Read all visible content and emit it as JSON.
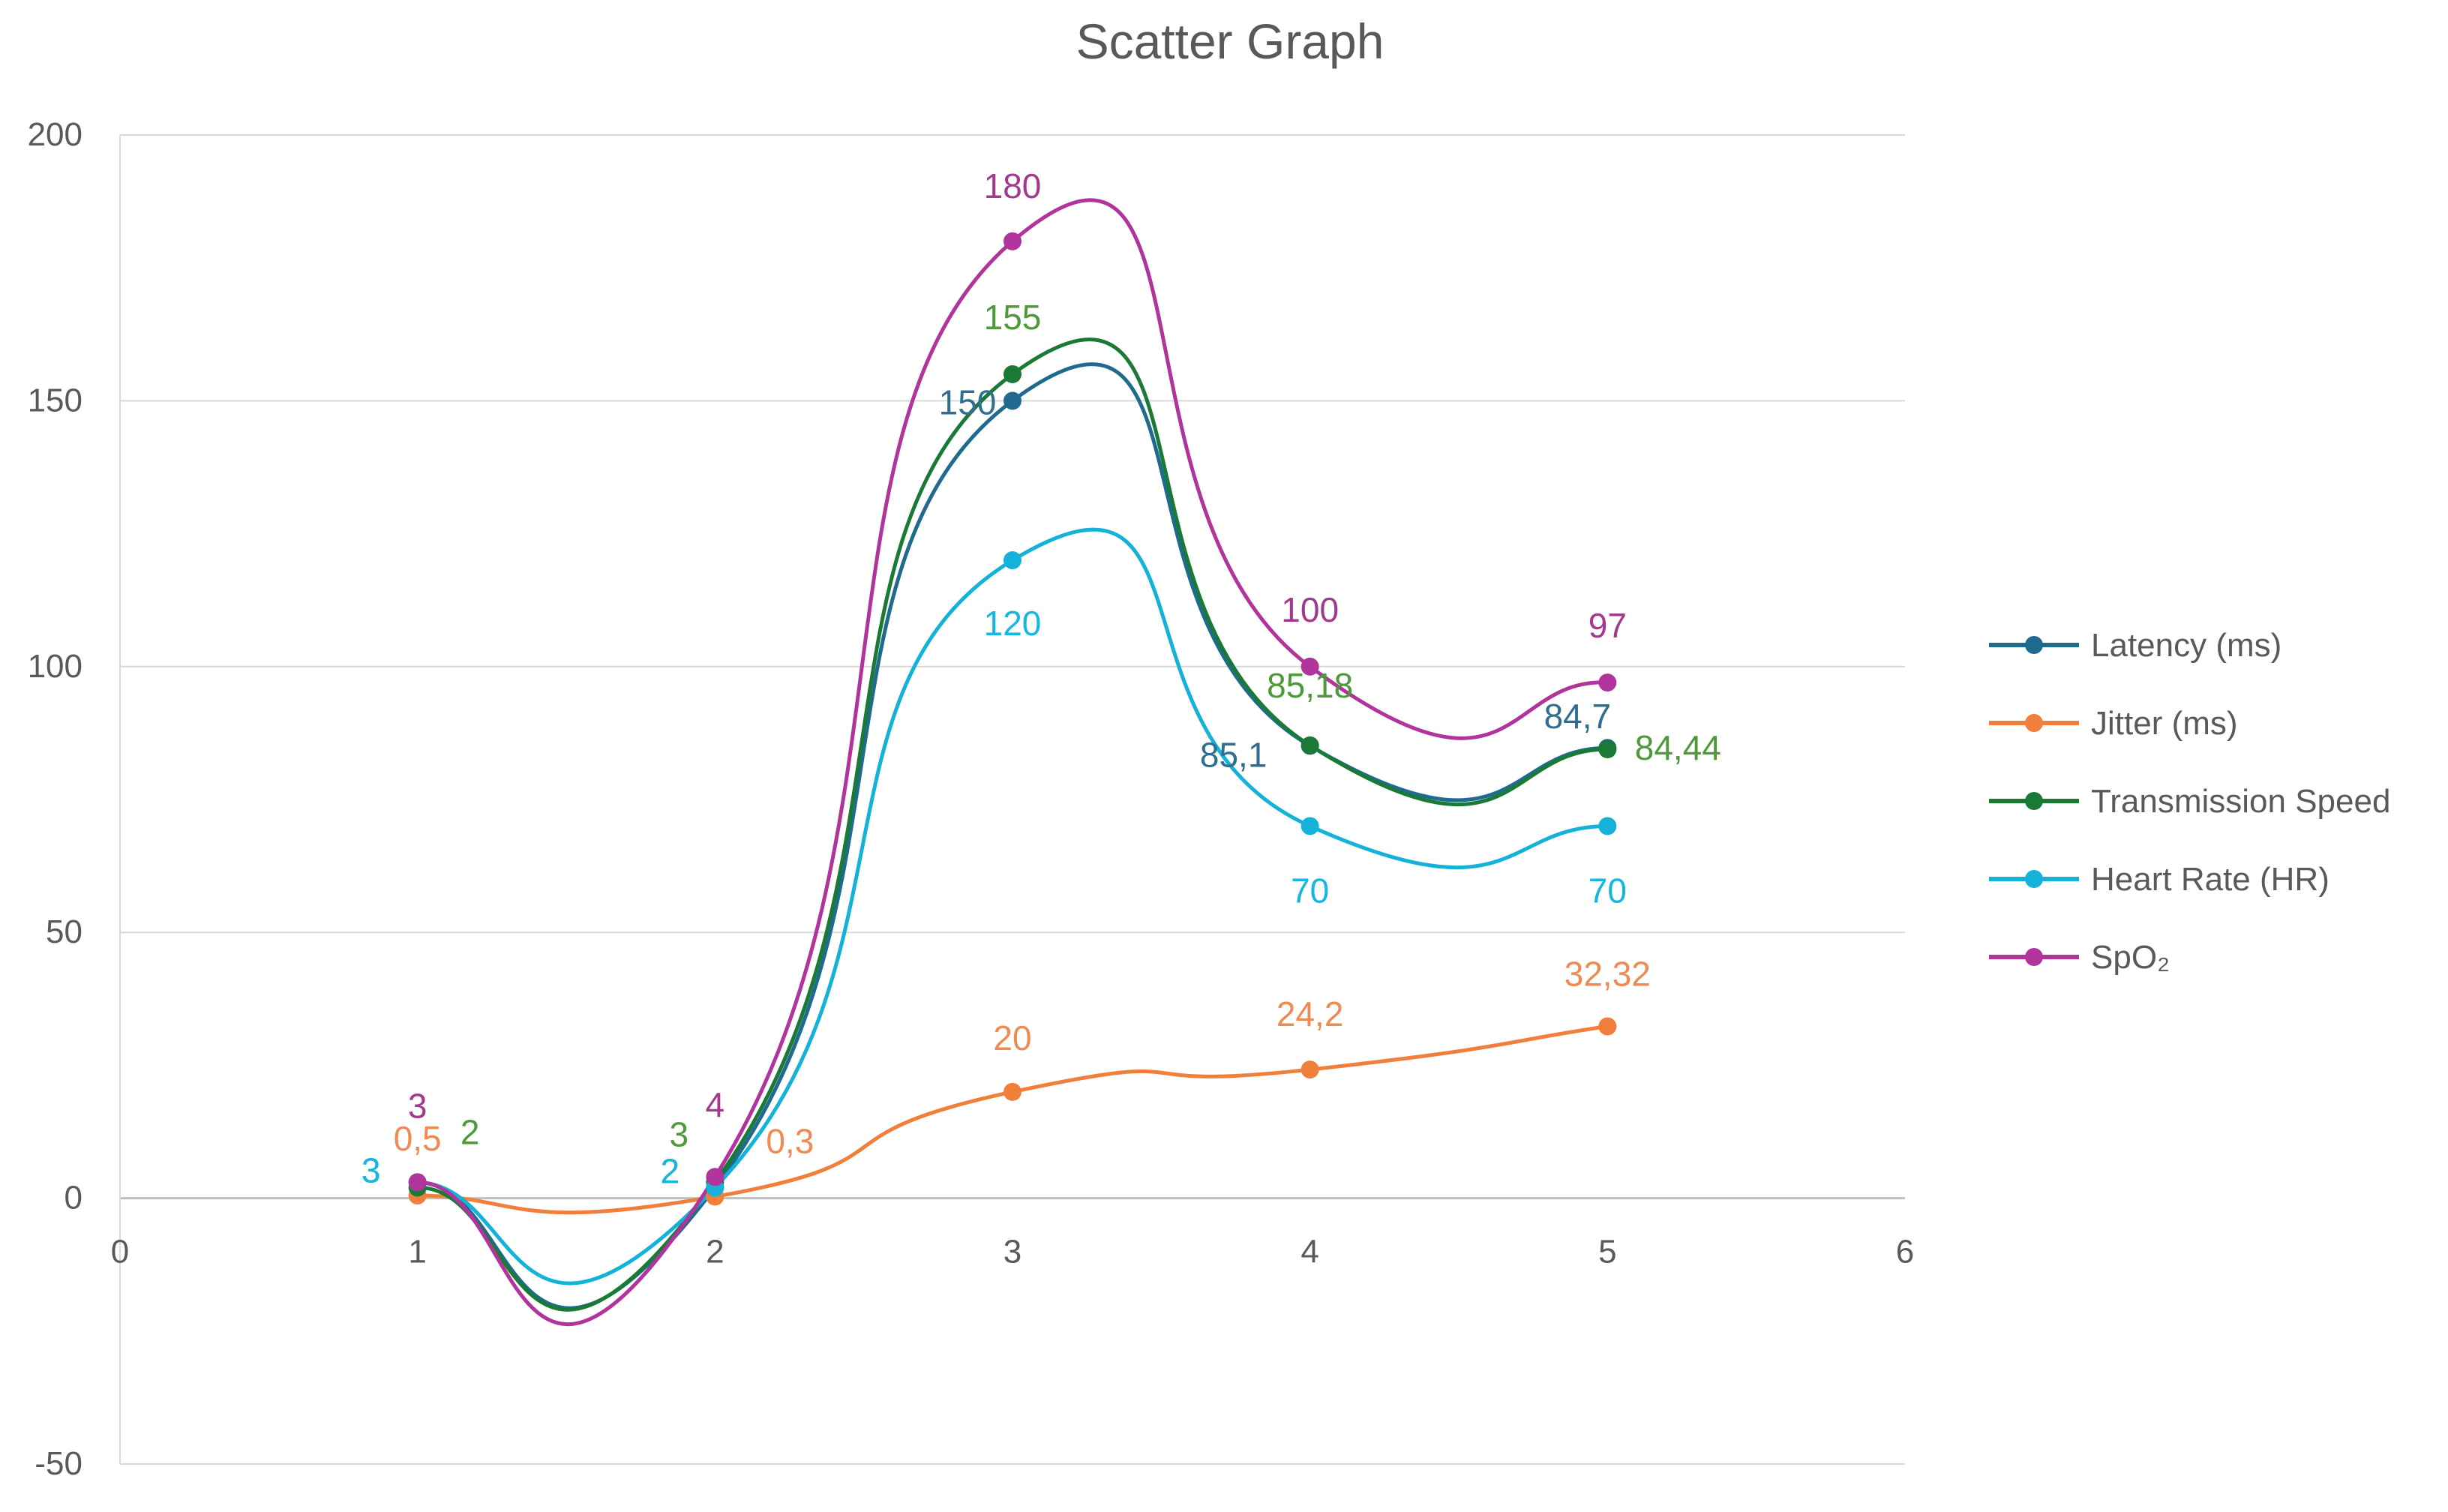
{
  "chart_data": {
    "type": "scatter",
    "title": "Scatter Graph",
    "xlabel": "",
    "ylabel": "",
    "xlim": [
      0,
      6
    ],
    "ylim": [
      -50,
      200
    ],
    "x_ticks": [
      "0",
      "1",
      "2",
      "3",
      "4",
      "5",
      "6"
    ],
    "y_ticks": [
      "-50",
      "0",
      "50",
      "100",
      "150",
      "200"
    ],
    "grid": true,
    "legend_position": "right",
    "series": [
      {
        "name": "Latency (ms)",
        "color": "#1f6b8f",
        "x": [
          1,
          2,
          3,
          4,
          5
        ],
        "y": [
          3,
          2,
          150,
          85.1,
          84.7
        ],
        "labels": [
          "3",
          "2",
          "150",
          "85,1",
          "84,7"
        ]
      },
      {
        "name": "Jitter (ms)",
        "color": "#f07f3c",
        "x": [
          1,
          2,
          3,
          4,
          5
        ],
        "y": [
          0.5,
          0.3,
          20,
          24.2,
          32.32
        ],
        "labels": [
          "0,5",
          "0,3",
          "20",
          "24,2",
          "32,32"
        ]
      },
      {
        "name": "Transmission Speed",
        "color": "#1a7a35",
        "x": [
          1,
          2,
          3,
          4,
          5
        ],
        "y": [
          2,
          3,
          155,
          85.18,
          84.44
        ],
        "labels": [
          "2",
          "3",
          "155",
          "85,18",
          "84,44"
        ]
      },
      {
        "name": "Heart Rate (HR)",
        "color": "#14b2d9",
        "x": [
          1,
          2,
          3,
          4,
          5
        ],
        "y": [
          3,
          2,
          120,
          70,
          70
        ],
        "labels": [
          "3",
          "2",
          "120",
          "70",
          "70"
        ]
      },
      {
        "name": "SpO₂",
        "color": "#b0349b",
        "x": [
          1,
          2,
          3,
          4,
          5
        ],
        "y": [
          3,
          4,
          180,
          100,
          97
        ],
        "labels": [
          "3",
          "4",
          "180",
          "100",
          "97"
        ]
      }
    ],
    "label_colors": {
      "Latency (ms)": "#2e6e8e",
      "Jitter (ms)": "#ef8a52",
      "Transmission Speed": "#4e9a3a",
      "Heart Rate (HR)": "#14b7e0",
      "SpO₂": "#a2398f"
    }
  }
}
